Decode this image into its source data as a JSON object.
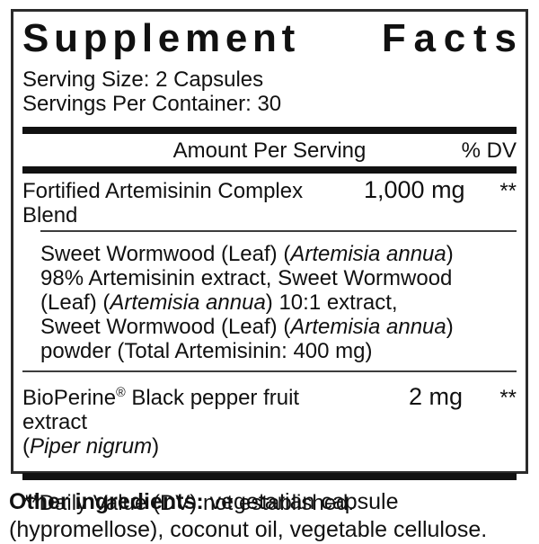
{
  "label": {
    "title": {
      "left": "Supplement",
      "right": "Facts"
    },
    "serving_size": "Serving Size: 2 Capsules",
    "servings_per_container": "Servings Per Container: 30",
    "columns": {
      "amount_header": "Amount Per Serving",
      "dv_header": "% DV"
    },
    "rows": {
      "blend": {
        "name": "Fortified Artemisinin Complex Blend",
        "amount": "1,000 mg",
        "dv": "**"
      },
      "blend_description": [
        {
          "text": "Sweet Wormwood (Leaf) ("
        },
        {
          "text": "Artemisia annua",
          "italic": true
        },
        {
          "text": ") 98% Artemisinin extract, Sweet Wormwood (Leaf) ("
        },
        {
          "text": "Artemisia annua",
          "italic": true
        },
        {
          "text": ") 10:1 extract, Sweet Wormwood (Leaf) ("
        },
        {
          "text": "Artemisia annua",
          "italic": true
        },
        {
          "text": ") powder (Total Artemisinin: 400 mg)"
        }
      ],
      "bioperine": {
        "name_segments": [
          {
            "text": "BioPerine"
          },
          {
            "text": "®",
            "sup": true
          },
          {
            "text": " Black pepper fruit extract"
          },
          {
            "br": true
          },
          {
            "text": "("
          },
          {
            "text": "Piper nigrum",
            "italic": true
          },
          {
            "text": ")"
          }
        ],
        "amount": "2 mg",
        "dv": "**"
      }
    },
    "footnote": "**Daily Value (DV) not established.",
    "other_ingredients": [
      {
        "text": "Other ingredients: ",
        "bold": true
      },
      {
        "text": "vegetarian capsule (hypromellose), coconut oil, vegetable cellulose."
      }
    ]
  },
  "colors": {
    "text": "#111111",
    "rule_thick": "#111111",
    "rule_thin": "#3d3d3d",
    "border": "#2b2b2b",
    "background": "#ffffff"
  }
}
